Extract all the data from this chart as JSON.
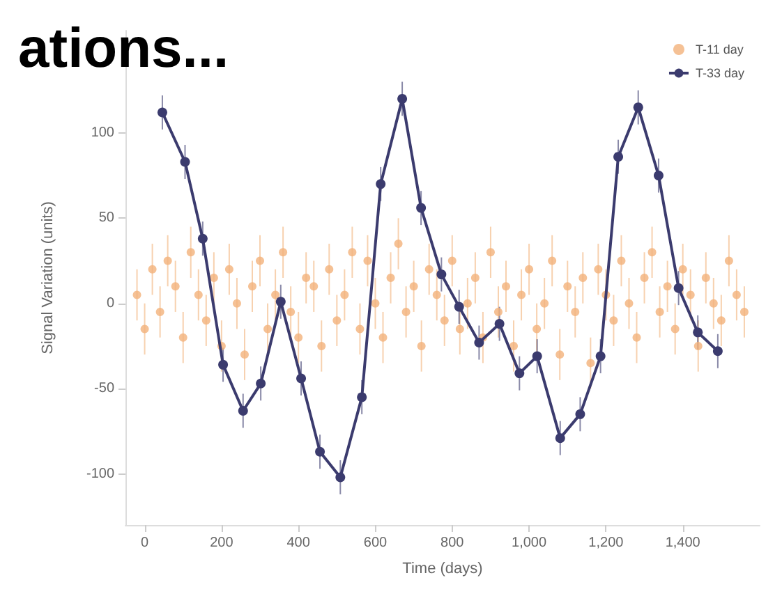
{
  "chart_data": {
    "type": "scatter",
    "title": "ations...",
    "xlabel": "Time (days)",
    "ylabel": "Signal Variation (units)",
    "xlim": [
      -50,
      1600
    ],
    "ylim": [
      -130,
      160
    ],
    "xticks": [
      0,
      200,
      400,
      600,
      800,
      {
        "value": 1000,
        "label": "1,000"
      },
      {
        "value": 1200,
        "label": "1,200"
      },
      {
        "value": 1400,
        "label": "1,400"
      }
    ],
    "yticks": [
      -100,
      -50,
      0,
      50,
      100
    ],
    "grid": false,
    "legend": "top right",
    "marker": "circle",
    "series": [
      {
        "name": "T-11 day",
        "color": "#f2b27a",
        "x": [
          -20,
          0,
          20,
          40,
          60,
          80,
          100,
          120,
          140,
          160,
          180,
          200,
          220,
          240,
          260,
          280,
          300,
          320,
          340,
          360,
          380,
          400,
          420,
          440,
          460,
          480,
          500,
          520,
          540,
          560,
          580,
          600,
          620,
          640,
          660,
          680,
          700,
          720,
          740,
          760,
          780,
          800,
          820,
          840,
          860,
          880,
          900,
          920,
          940,
          960,
          980,
          1000,
          1020,
          1040,
          1060,
          1080,
          1100,
          1120,
          1140,
          1160,
          1180,
          1200,
          1220,
          1240,
          1260,
          1280,
          1300,
          1320,
          1340,
          1360,
          1380,
          1400,
          1420,
          1440,
          1460,
          1480,
          1500,
          1520,
          1540,
          1560
        ],
        "values": [
          5,
          -15,
          20,
          -5,
          25,
          10,
          -20,
          30,
          5,
          -10,
          15,
          -25,
          20,
          0,
          -30,
          10,
          25,
          -15,
          5,
          30,
          -5,
          -20,
          15,
          10,
          -25,
          20,
          -10,
          5,
          30,
          -15,
          25,
          0,
          -20,
          15,
          35,
          -5,
          10,
          -25,
          20,
          5,
          -10,
          25,
          -15,
          0,
          15,
          -20,
          30,
          -5,
          10,
          -25,
          5,
          20,
          -15,
          0,
          25,
          -30,
          10,
          -5,
          15,
          -35,
          20,
          5,
          -10,
          25,
          0,
          -20,
          15,
          30,
          -5,
          10,
          -15,
          20,
          5,
          -25,
          15,
          0,
          -10,
          25,
          5,
          -5
        ],
        "errors": [
          15,
          15,
          15,
          15,
          15,
          15,
          15,
          15,
          15,
          15,
          15,
          15,
          15,
          15,
          15,
          15,
          15,
          15,
          15,
          15,
          15,
          15,
          15,
          15,
          15,
          15,
          15,
          15,
          15,
          15,
          15,
          15,
          15,
          15,
          15,
          15,
          15,
          15,
          15,
          15,
          15,
          15,
          15,
          15,
          15,
          15,
          15,
          15,
          15,
          15,
          15,
          15,
          15,
          15,
          15,
          15,
          15,
          15,
          15,
          15,
          15,
          15,
          15,
          15,
          15,
          15,
          15,
          15,
          15,
          15,
          15,
          15,
          15,
          15,
          15,
          15,
          15,
          15,
          15,
          15
        ]
      },
      {
        "name": "T-33 day",
        "type": "line",
        "color": "#3b3b6e",
        "x": [
          46,
          105,
          151,
          204,
          256,
          302,
          354,
          407,
          456,
          509,
          565,
          614,
          670,
          719,
          772,
          818,
          870,
          923,
          975,
          1021,
          1081,
          1133,
          1186,
          1232,
          1284,
          1337,
          1389,
          1439,
          1491
        ],
        "values": [
          112,
          83,
          38,
          -36,
          -63,
          -47,
          1,
          -44,
          -87,
          -102,
          -55,
          70,
          120,
          56,
          17,
          -2,
          -23,
          -12,
          -41,
          -31,
          -79,
          -65,
          -31,
          86,
          115,
          75,
          9,
          -17,
          -28
        ],
        "errors": [
          10,
          10,
          10,
          10,
          10,
          10,
          10,
          10,
          10,
          10,
          10,
          10,
          10,
          10,
          10,
          10,
          10,
          10,
          10,
          10,
          10,
          10,
          10,
          10,
          10,
          10,
          10,
          10,
          10
        ]
      }
    ]
  }
}
